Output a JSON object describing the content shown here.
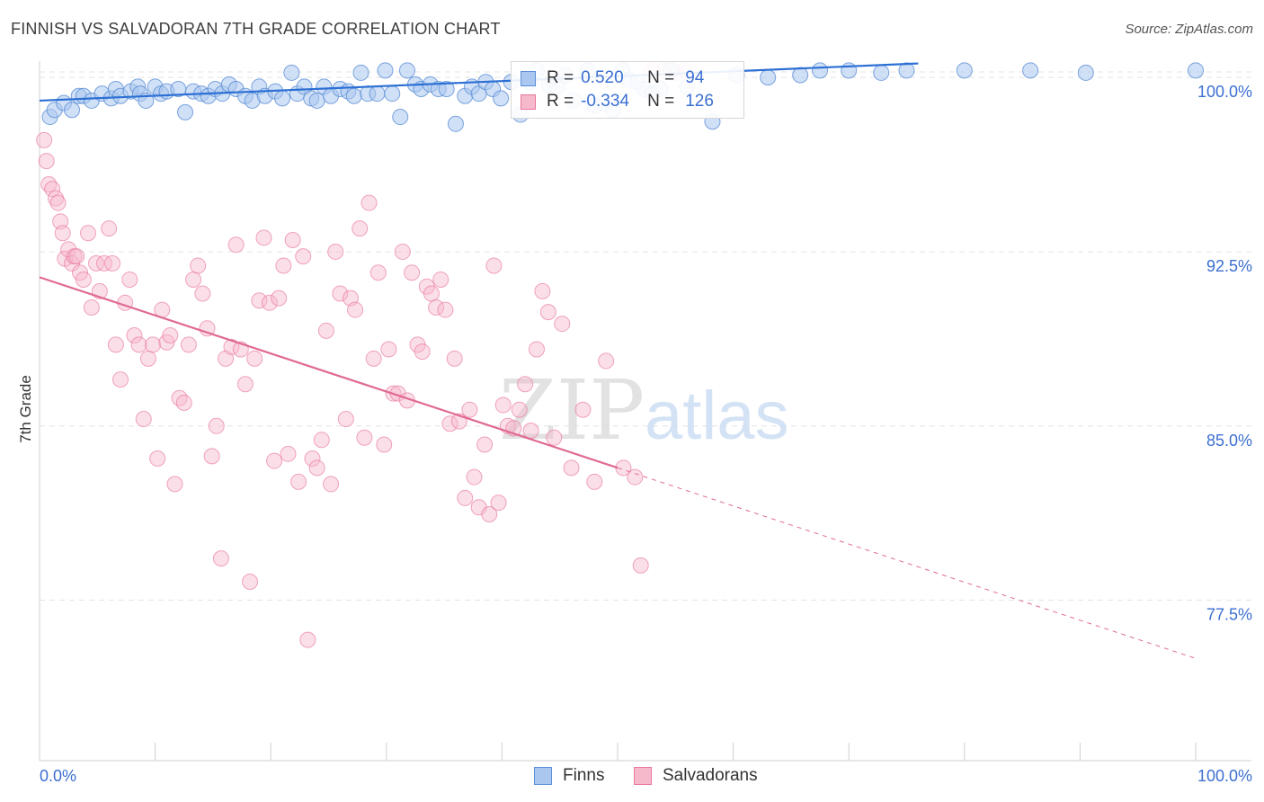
{
  "title": "FINNISH VS SALVADORAN 7TH GRADE CORRELATION CHART",
  "source": "Source: ZipAtlas.com",
  "watermark": {
    "zip": "ZIP",
    "atlas": "atlas"
  },
  "legend": {
    "r_label": "R =",
    "n_label": "N =",
    "finns": {
      "r": "0.520",
      "n": "94"
    },
    "salvadorans": {
      "r": "-0.334",
      "n": "126"
    }
  },
  "bottom_legend": {
    "finns": "Finns",
    "salvadorans": "Salvadorans"
  },
  "colors": {
    "finns_fill": "#a9c7ef",
    "finns_stroke": "#5b8fd6",
    "finns_line": "#2c6fd4",
    "salv_fill": "#f6b9cc",
    "salv_stroke": "#e8779c",
    "salv_line": "#e06a93",
    "axis_text": "#3b6fd1",
    "grid": "#e4e4e4"
  },
  "chart_data": {
    "type": "scatter",
    "title": "FINNISH VS SALVADORAN 7TH GRADE CORRELATION CHART",
    "xlabel": "",
    "ylabel": "7th Grade",
    "xlim": [
      0,
      100
    ],
    "ylim": [
      70.6,
      100.7
    ],
    "x_tick_labels": [
      "0.0%",
      "100.0%"
    ],
    "y_ticks": [
      77.5,
      85.0,
      92.5,
      100.0
    ],
    "y_tick_labels": [
      "77.5%",
      "85.0%",
      "92.5%",
      "100.0%"
    ],
    "grid": true,
    "legend_position": "top-center",
    "series": [
      {
        "name": "Finns",
        "trend": {
          "x0": 0,
          "y0": 99.0,
          "x1": 76,
          "y1": 100.6,
          "solid_until": 76
        },
        "points": [
          [
            0.9,
            98.3
          ],
          [
            1.3,
            98.6
          ],
          [
            2.1,
            98.9
          ],
          [
            2.8,
            98.6
          ],
          [
            3.4,
            99.2
          ],
          [
            3.8,
            99.2
          ],
          [
            4.5,
            99.0
          ],
          [
            5.4,
            99.3
          ],
          [
            6.2,
            99.1
          ],
          [
            6.6,
            99.5
          ],
          [
            7.0,
            99.2
          ],
          [
            7.9,
            99.4
          ],
          [
            8.5,
            99.6
          ],
          [
            8.7,
            99.3
          ],
          [
            9.2,
            99.0
          ],
          [
            10.0,
            99.6
          ],
          [
            10.5,
            99.3
          ],
          [
            11.0,
            99.4
          ],
          [
            12.0,
            99.5
          ],
          [
            12.6,
            98.5
          ],
          [
            13.3,
            99.4
          ],
          [
            14.0,
            99.3
          ],
          [
            14.6,
            99.2
          ],
          [
            15.2,
            99.5
          ],
          [
            15.8,
            99.3
          ],
          [
            16.4,
            99.7
          ],
          [
            17.0,
            99.5
          ],
          [
            17.8,
            99.2
          ],
          [
            18.4,
            99.0
          ],
          [
            19.0,
            99.6
          ],
          [
            19.5,
            99.2
          ],
          [
            20.4,
            99.4
          ],
          [
            21.0,
            99.1
          ],
          [
            21.8,
            100.2
          ],
          [
            22.3,
            99.3
          ],
          [
            22.9,
            99.6
          ],
          [
            23.5,
            99.1
          ],
          [
            24.0,
            99.0
          ],
          [
            24.6,
            99.6
          ],
          [
            25.2,
            99.2
          ],
          [
            26.0,
            99.5
          ],
          [
            26.7,
            99.4
          ],
          [
            27.2,
            99.2
          ],
          [
            27.8,
            100.2
          ],
          [
            28.4,
            99.3
          ],
          [
            29.2,
            99.3
          ],
          [
            29.9,
            100.3
          ],
          [
            30.5,
            99.3
          ],
          [
            31.2,
            98.3
          ],
          [
            31.8,
            100.3
          ],
          [
            32.5,
            99.7
          ],
          [
            33.0,
            99.5
          ],
          [
            33.8,
            99.7
          ],
          [
            34.5,
            99.5
          ],
          [
            35.2,
            99.5
          ],
          [
            36.0,
            98.0
          ],
          [
            36.8,
            99.2
          ],
          [
            37.4,
            99.6
          ],
          [
            38.0,
            99.3
          ],
          [
            38.6,
            99.8
          ],
          [
            39.2,
            99.5
          ],
          [
            39.9,
            99.1
          ],
          [
            40.8,
            99.8
          ],
          [
            41.6,
            98.4
          ],
          [
            42.4,
            99.8
          ],
          [
            43.0,
            100.3
          ],
          [
            44.1,
            99.7
          ],
          [
            44.8,
            99.6
          ],
          [
            45.5,
            100.1
          ],
          [
            46.2,
            99.0
          ],
          [
            47.4,
            100.3
          ],
          [
            48.0,
            98.8
          ],
          [
            48.8,
            98.9
          ],
          [
            49.6,
            98.6
          ],
          [
            50.4,
            100.3
          ],
          [
            51.0,
            99.9
          ],
          [
            51.7,
            99.8
          ],
          [
            52.3,
            99.5
          ],
          [
            53.0,
            99.3
          ],
          [
            53.7,
            99.5
          ],
          [
            54.6,
            100.3
          ],
          [
            56.0,
            99.6
          ],
          [
            58.2,
            98.1
          ],
          [
            60.3,
            100.1
          ],
          [
            63.0,
            100.0
          ],
          [
            65.8,
            100.1
          ],
          [
            67.5,
            100.3
          ],
          [
            70.0,
            100.3
          ],
          [
            72.8,
            100.2
          ],
          [
            75.0,
            100.3
          ],
          [
            80.0,
            100.3
          ],
          [
            85.7,
            100.3
          ],
          [
            90.5,
            100.2
          ],
          [
            100.0,
            100.3
          ]
        ]
      },
      {
        "name": "Salvadorans",
        "trend": {
          "x0": 0,
          "y0": 91.4,
          "x1": 100,
          "y1": 75.0,
          "solid_until": 50
        },
        "points": [
          [
            0.4,
            97.3
          ],
          [
            0.6,
            96.4
          ],
          [
            0.8,
            95.4
          ],
          [
            1.1,
            95.2
          ],
          [
            1.4,
            94.8
          ],
          [
            1.6,
            94.6
          ],
          [
            1.8,
            93.8
          ],
          [
            2.0,
            93.3
          ],
          [
            2.2,
            92.2
          ],
          [
            2.5,
            92.6
          ],
          [
            2.8,
            92.0
          ],
          [
            3.0,
            92.3
          ],
          [
            3.2,
            92.3
          ],
          [
            3.5,
            91.6
          ],
          [
            3.8,
            91.3
          ],
          [
            4.2,
            93.3
          ],
          [
            4.5,
            90.1
          ],
          [
            4.9,
            92.0
          ],
          [
            5.2,
            90.8
          ],
          [
            5.6,
            92.0
          ],
          [
            6.0,
            93.5
          ],
          [
            6.3,
            92.0
          ],
          [
            6.6,
            88.5
          ],
          [
            7.0,
            87.0
          ],
          [
            7.4,
            90.3
          ],
          [
            7.8,
            91.3
          ],
          [
            8.2,
            88.9
          ],
          [
            8.6,
            88.5
          ],
          [
            9.0,
            85.3
          ],
          [
            9.4,
            87.9
          ],
          [
            9.8,
            88.5
          ],
          [
            10.2,
            83.6
          ],
          [
            10.6,
            90.0
          ],
          [
            11.0,
            88.6
          ],
          [
            11.3,
            88.9
          ],
          [
            11.7,
            82.5
          ],
          [
            12.1,
            86.2
          ],
          [
            12.5,
            86.0
          ],
          [
            12.9,
            88.5
          ],
          [
            13.3,
            91.3
          ],
          [
            13.7,
            91.9
          ],
          [
            14.1,
            90.7
          ],
          [
            14.5,
            89.2
          ],
          [
            14.9,
            83.7
          ],
          [
            15.3,
            85.0
          ],
          [
            15.7,
            79.3
          ],
          [
            16.1,
            87.9
          ],
          [
            16.6,
            88.4
          ],
          [
            17.0,
            92.8
          ],
          [
            17.4,
            88.3
          ],
          [
            17.8,
            86.8
          ],
          [
            18.2,
            78.3
          ],
          [
            18.6,
            87.9
          ],
          [
            19.0,
            90.4
          ],
          [
            19.4,
            93.1
          ],
          [
            19.9,
            90.3
          ],
          [
            20.3,
            83.5
          ],
          [
            20.7,
            90.5
          ],
          [
            21.1,
            91.9
          ],
          [
            21.5,
            83.8
          ],
          [
            21.9,
            93.0
          ],
          [
            22.4,
            82.6
          ],
          [
            22.8,
            92.3
          ],
          [
            23.2,
            75.8
          ],
          [
            23.6,
            83.6
          ],
          [
            24.0,
            83.2
          ],
          [
            24.4,
            84.4
          ],
          [
            24.8,
            89.1
          ],
          [
            25.2,
            82.5
          ],
          [
            25.6,
            92.5
          ],
          [
            26.0,
            90.7
          ],
          [
            26.5,
            85.3
          ],
          [
            26.9,
            90.5
          ],
          [
            27.3,
            90.0
          ],
          [
            27.7,
            93.5
          ],
          [
            28.1,
            84.5
          ],
          [
            28.5,
            94.6
          ],
          [
            28.9,
            87.9
          ],
          [
            29.3,
            91.6
          ],
          [
            29.8,
            84.2
          ],
          [
            30.2,
            88.3
          ],
          [
            30.6,
            86.4
          ],
          [
            31.0,
            86.4
          ],
          [
            31.4,
            92.5
          ],
          [
            31.8,
            86.1
          ],
          [
            32.2,
            91.6
          ],
          [
            32.7,
            88.5
          ],
          [
            33.1,
            88.2
          ],
          [
            33.5,
            91.0
          ],
          [
            33.9,
            90.7
          ],
          [
            34.3,
            90.1
          ],
          [
            34.7,
            91.3
          ],
          [
            35.1,
            90.0
          ],
          [
            35.5,
            85.1
          ],
          [
            35.9,
            87.9
          ],
          [
            36.3,
            85.2
          ],
          [
            36.8,
            81.9
          ],
          [
            37.2,
            85.7
          ],
          [
            37.6,
            82.8
          ],
          [
            38.0,
            81.5
          ],
          [
            38.5,
            84.2
          ],
          [
            38.9,
            81.2
          ],
          [
            39.3,
            91.9
          ],
          [
            39.7,
            81.7
          ],
          [
            40.1,
            85.9
          ],
          [
            40.5,
            85.0
          ],
          [
            41.0,
            84.9
          ],
          [
            41.5,
            85.7
          ],
          [
            42.0,
            86.8
          ],
          [
            42.5,
            84.8
          ],
          [
            43.0,
            88.3
          ],
          [
            43.5,
            90.8
          ],
          [
            44.0,
            89.9
          ],
          [
            44.5,
            84.5
          ],
          [
            45.2,
            89.4
          ],
          [
            46.0,
            83.2
          ],
          [
            47.0,
            85.7
          ],
          [
            48.0,
            82.6
          ],
          [
            49.0,
            87.8
          ],
          [
            50.5,
            83.2
          ],
          [
            51.5,
            82.8
          ],
          [
            52.0,
            79.0
          ],
          [
            53.0,
            100.3
          ],
          [
            54.0,
            100.3
          ],
          [
            55.0,
            100.2
          ],
          [
            55.8,
            100.3
          ]
        ]
      }
    ]
  }
}
